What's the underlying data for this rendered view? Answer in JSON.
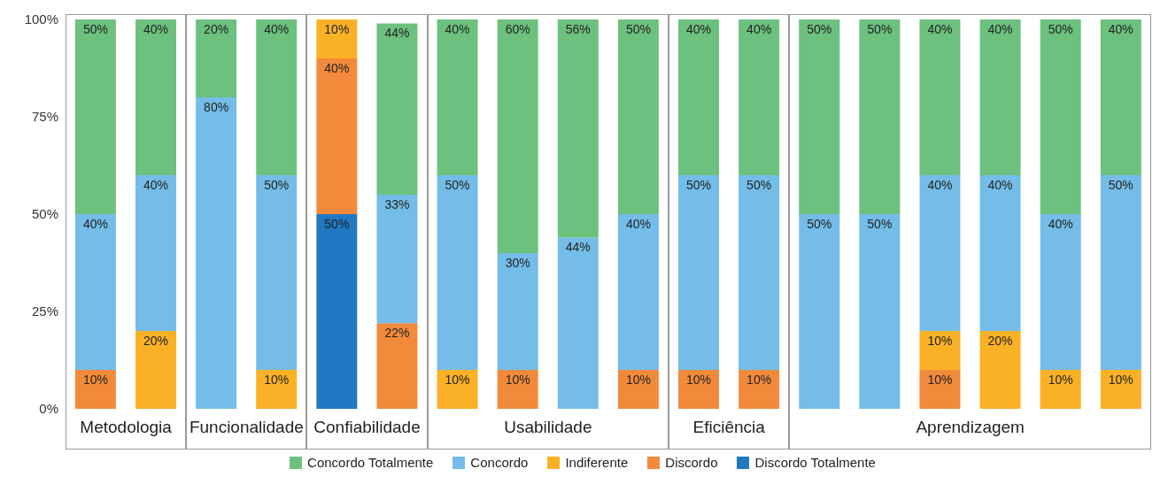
{
  "chart_data": {
    "type": "bar",
    "stacked": true,
    "categories": [
      null,
      null,
      null,
      null,
      null,
      null,
      null,
      null,
      null,
      null,
      null,
      null,
      null,
      null,
      null,
      null,
      null,
      null
    ],
    "tick_labels": "y",
    "ylim": [
      0,
      100
    ],
    "yticks": [
      {
        "value": 0,
        "label": "0%"
      },
      {
        "value": 25,
        "label": "25%"
      },
      {
        "value": 50,
        "label": "50%"
      },
      {
        "value": 75,
        "label": "75%"
      },
      {
        "value": 100,
        "label": "100%"
      }
    ],
    "legend": "bottom",
    "annotations": [
      "Metodologia",
      "Funcionalidade",
      "Confiabilidade",
      "Usabilidade",
      "Eficiência",
      "Aprendizagem"
    ],
    "series": [
      {
        "name": "Discordo Totalmente",
        "color": "#1f78c1",
        "values": [
          null,
          null,
          null,
          null,
          50,
          null,
          null,
          null,
          null,
          null,
          null,
          null,
          null,
          null,
          null,
          null,
          null,
          null
        ],
        "value_labels": [
          null,
          null,
          null,
          null,
          "50%",
          null,
          null,
          null,
          null,
          null,
          null,
          null,
          null,
          null,
          null,
          null,
          null,
          null
        ]
      },
      {
        "name": "Discordo",
        "color": "#f28a3b",
        "values": [
          10,
          null,
          null,
          null,
          40,
          22,
          null,
          10,
          null,
          10,
          10,
          10,
          null,
          null,
          10,
          null,
          null,
          null
        ],
        "value_labels": [
          "10%",
          null,
          null,
          null,
          "40%",
          "22%",
          null,
          "10%",
          null,
          "10%",
          "10%",
          "10%",
          null,
          null,
          "10%",
          null,
          null,
          null
        ]
      },
      {
        "name": "Indiferente",
        "color": "#fbb125",
        "values": [
          null,
          20,
          null,
          10,
          10,
          null,
          10,
          null,
          null,
          null,
          null,
          null,
          null,
          null,
          10,
          20,
          10,
          10
        ],
        "value_labels": [
          null,
          "20%",
          null,
          "10%",
          "10%",
          null,
          "10%",
          null,
          null,
          null,
          null,
          null,
          null,
          null,
          "10%",
          "20%",
          "10%",
          "10%"
        ]
      },
      {
        "name": "Concordo",
        "color": "#74bde8",
        "values": [
          40,
          40,
          80,
          50,
          null,
          33,
          50,
          30,
          44,
          40,
          50,
          50,
          50,
          50,
          40,
          40,
          40,
          50
        ],
        "value_labels": [
          "40%",
          "40%",
          "80%",
          "50%",
          null,
          "33%",
          "50%",
          "30%",
          "44%",
          "40%",
          "50%",
          "50%",
          "50%",
          "50%",
          "40%",
          "40%",
          "40%",
          "50%"
        ]
      },
      {
        "name": "Concordo Totalmente",
        "color": "#6cc17e",
        "values": [
          50,
          40,
          20,
          40,
          null,
          44,
          40,
          60,
          56,
          50,
          40,
          40,
          50,
          50,
          40,
          40,
          50,
          40
        ],
        "value_labels": [
          "50%",
          "40%",
          "20%",
          "40%",
          null,
          "44%",
          "40%",
          "60%",
          "56%",
          "50%",
          "40%",
          "40%",
          "50%",
          "50%",
          "40%",
          "40%",
          "50%",
          "40%"
        ]
      }
    ]
  }
}
